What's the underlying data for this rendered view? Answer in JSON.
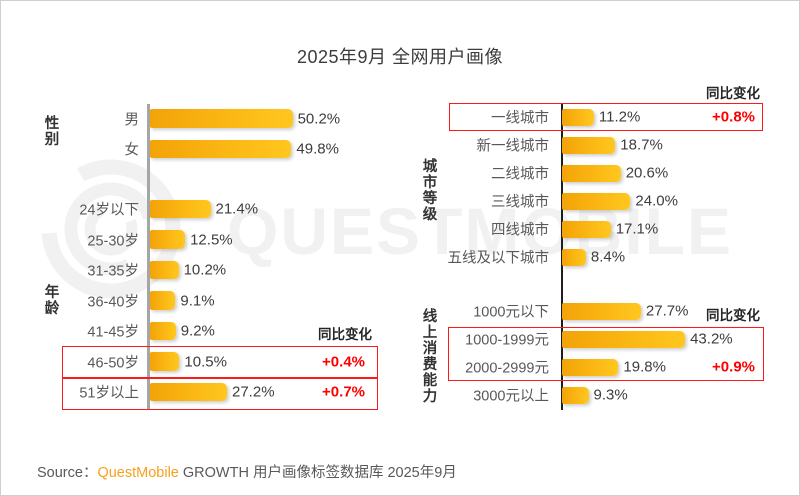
{
  "title": "2025年9月 全网用户画像",
  "watermark_text": "QUESTMOBILE",
  "source": {
    "label": "Source：",
    "brand": "QuestMobile",
    "rest": " GROWTH 用户画像标签数据库 2025年9月"
  },
  "colors": {
    "bar_gradient_start": "#F2A308",
    "bar_gradient_end": "#FFC71F",
    "highlight_red": "#FF1A1A",
    "yoy_text_red": "#FF0000",
    "left_axis": "#A6A6A6",
    "right_axis": "#1E1E1E",
    "brand_orange": "#F9A01B"
  },
  "chart_data": [
    {
      "type": "bar",
      "panel": "left",
      "orientation": "horizontal",
      "unit": "%",
      "yoy_header": "同比变化",
      "groups": [
        {
          "label": "性别",
          "rows": [
            {
              "category": "男",
              "value": 50.2,
              "display": "50.2%"
            },
            {
              "category": "女",
              "value": 49.8,
              "display": "49.8%"
            }
          ]
        },
        {
          "label": "年龄",
          "rows": [
            {
              "category": "24岁以下",
              "value": 21.4,
              "display": "21.4%"
            },
            {
              "category": "25-30岁",
              "value": 12.5,
              "display": "12.5%"
            },
            {
              "category": "31-35岁",
              "value": 10.2,
              "display": "10.2%"
            },
            {
              "category": "36-40岁",
              "value": 9.1,
              "display": "9.1%"
            },
            {
              "category": "41-45岁",
              "value": 9.2,
              "display": "9.2%"
            },
            {
              "category": "46-50岁",
              "value": 10.5,
              "display": "10.5%",
              "yoy": "+0.4%",
              "highlighted": true
            },
            {
              "category": "51岁以上",
              "value": 27.2,
              "display": "27.2%",
              "yoy": "+0.7%",
              "highlighted": true
            }
          ]
        }
      ]
    },
    {
      "type": "bar",
      "panel": "right",
      "orientation": "horizontal",
      "unit": "%",
      "yoy_header": "同比变化",
      "groups": [
        {
          "label": "城市等级",
          "rows": [
            {
              "category": "一线城市",
              "value": 11.2,
              "display": "11.2%",
              "yoy": "+0.8%",
              "highlighted": true
            },
            {
              "category": "新一线城市",
              "value": 18.7,
              "display": "18.7%"
            },
            {
              "category": "二线城市",
              "value": 20.6,
              "display": "20.6%"
            },
            {
              "category": "三线城市",
              "value": 24.0,
              "display": "24.0%"
            },
            {
              "category": "四线城市",
              "value": 17.1,
              "display": "17.1%"
            },
            {
              "category": "五线及以下城市",
              "value": 8.4,
              "display": "8.4%"
            }
          ]
        },
        {
          "label": "线上消费能力",
          "rows": [
            {
              "category": "1000元以下",
              "value": 27.7,
              "display": "27.7%"
            },
            {
              "category": "1000-1999元",
              "value": 43.2,
              "display": "43.2%",
              "highlighted": true
            },
            {
              "category": "2000-2999元",
              "value": 19.8,
              "display": "19.8%",
              "yoy": "+0.9%",
              "highlighted": true
            },
            {
              "category": "3000元以上",
              "value": 9.3,
              "display": "9.3%"
            }
          ]
        }
      ]
    }
  ]
}
